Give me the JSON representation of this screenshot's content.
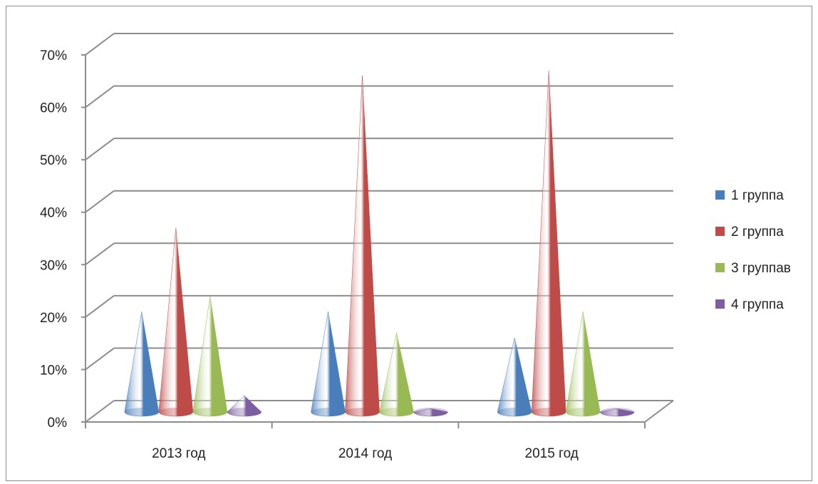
{
  "chart_data": {
    "type": "bar",
    "style": "3d-cone",
    "categories": [
      "2013 год",
      "2014 год",
      "2015 год"
    ],
    "series": [
      {
        "name": "1 группа",
        "color": "#4a7ebb",
        "values": [
          19,
          19,
          14
        ]
      },
      {
        "name": "2 группа",
        "color": "#be4b48",
        "values": [
          35,
          64,
          65
        ]
      },
      {
        "name": "3 группав",
        "color": "#98b954",
        "values": [
          22,
          15,
          19
        ]
      },
      {
        "name": "4 группа",
        "color": "#7d5fa0",
        "values": [
          3,
          0.5,
          0.5
        ]
      }
    ],
    "y_ticks": [
      "0%",
      "10%",
      "20%",
      "30%",
      "40%",
      "50%",
      "60%",
      "70%"
    ],
    "ylim": [
      0,
      70
    ],
    "y_unit": "%",
    "grid": true,
    "legend_position": "right"
  }
}
